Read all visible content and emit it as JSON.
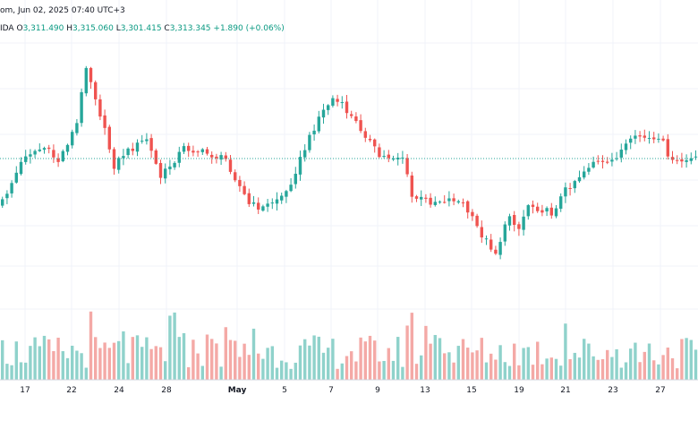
{
  "header": {
    "title": "om, Jun 02, 2025 07:40 UTC+3",
    "symbol_suffix": "IDA",
    "open_label": "O",
    "open": "3,311.490",
    "high_label": "H",
    "high": "3,315.060",
    "low_label": "L",
    "low": "3,301.415",
    "close_label": "C",
    "close": "3,313.345",
    "change": "+1.890 (+0.06%)"
  },
  "colors": {
    "up": "#26a69a",
    "down": "#ef5350",
    "vol_up": "#8fd2cb",
    "vol_down": "#f4a9a6",
    "grid": "#f0f3fa",
    "current_price_line": "#26a69a"
  },
  "chart_data": {
    "type": "candlestick",
    "title": "",
    "x_tick_labels": [
      "17",
      "22",
      "24",
      "28",
      "May",
      "5",
      "7",
      "9",
      "13",
      "15",
      "19",
      "21",
      "23",
      "27"
    ],
    "x_tick_bold": [
      "May"
    ],
    "y_axis_visible": false,
    "grid": true,
    "last_close": 3313.345,
    "volume_panel": true
  }
}
